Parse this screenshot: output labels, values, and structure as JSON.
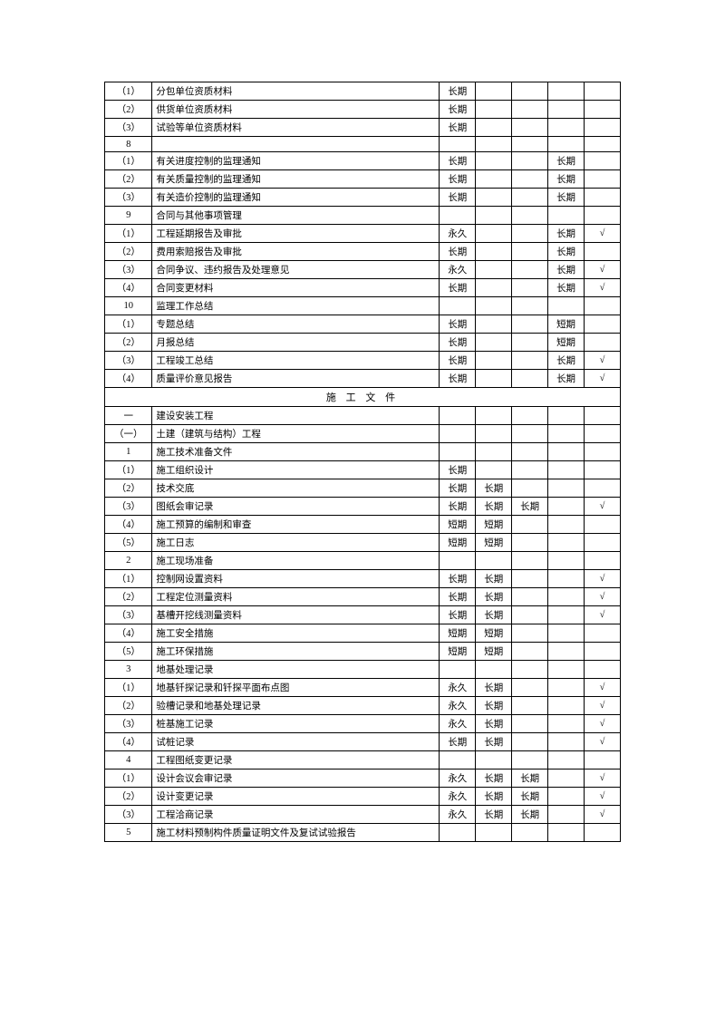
{
  "sectionHeader": "施 工 文 件",
  "rows": [
    {
      "num": "（1）",
      "name": "分包单位资质材料",
      "c1": "长期",
      "c2": "",
      "c3": "",
      "c4": "",
      "c5": ""
    },
    {
      "num": "（2）",
      "name": "供货单位资质材料",
      "c1": "长期",
      "c2": "",
      "c3": "",
      "c4": "",
      "c5": ""
    },
    {
      "num": "（3）",
      "name": "试验等单位资质材料",
      "c1": "长期",
      "c2": "",
      "c3": "",
      "c4": "",
      "c5": ""
    },
    {
      "num": "8",
      "name": "",
      "c1": "",
      "c2": "",
      "c3": "",
      "c4": "",
      "c5": ""
    },
    {
      "num": "（1）",
      "name": "有关进度控制的监理通知",
      "c1": "长期",
      "c2": "",
      "c3": "",
      "c4": "长期",
      "c5": ""
    },
    {
      "num": "（2）",
      "name": "有关质量控制的监理通知",
      "c1": "长期",
      "c2": "",
      "c3": "",
      "c4": "长期",
      "c5": ""
    },
    {
      "num": "（3）",
      "name": "有关造价控制的监理通知",
      "c1": "长期",
      "c2": "",
      "c3": "",
      "c4": "长期",
      "c5": ""
    },
    {
      "num": "9",
      "name": "合同与其他事项管理",
      "c1": "",
      "c2": "",
      "c3": "",
      "c4": "",
      "c5": ""
    },
    {
      "num": "（1）",
      "name": "工程延期报告及审批",
      "c1": "永久",
      "c2": "",
      "c3": "",
      "c4": "长期",
      "c5": "√"
    },
    {
      "num": "（2）",
      "name": "费用索赔报告及审批",
      "c1": "长期",
      "c2": "",
      "c3": "",
      "c4": "长期",
      "c5": ""
    },
    {
      "num": "（3）",
      "name": "合同争议、违约报告及处理意见",
      "c1": "永久",
      "c2": "",
      "c3": "",
      "c4": "长期",
      "c5": "√"
    },
    {
      "num": "（4）",
      "name": "合同变更材料",
      "c1": "长期",
      "c2": "",
      "c3": "",
      "c4": "长期",
      "c5": "√"
    },
    {
      "num": "10",
      "name": "监理工作总结",
      "c1": "",
      "c2": "",
      "c3": "",
      "c4": "",
      "c5": ""
    },
    {
      "num": "（1）",
      "name": "专题总结",
      "c1": "长期",
      "c2": "",
      "c3": "",
      "c4": "短期",
      "c5": ""
    },
    {
      "num": "（2）",
      "name": "月报总结",
      "c1": "长期",
      "c2": "",
      "c3": "",
      "c4": "短期",
      "c5": ""
    },
    {
      "num": "（3）",
      "name": "工程竣工总结",
      "c1": "长期",
      "c2": "",
      "c3": "",
      "c4": "长期",
      "c5": "√"
    },
    {
      "num": "（4）",
      "name": "质量评价意见报告",
      "c1": "长期",
      "c2": "",
      "c3": "",
      "c4": "长期",
      "c5": "√"
    },
    {
      "section": true
    },
    {
      "num": "一",
      "name": "建设安装工程",
      "c1": "",
      "c2": "",
      "c3": "",
      "c4": "",
      "c5": ""
    },
    {
      "num": "（一）",
      "name": "土建（建筑与结构）工程",
      "c1": "",
      "c2": "",
      "c3": "",
      "c4": "",
      "c5": ""
    },
    {
      "num": "1",
      "name": "施工技术准备文件",
      "c1": "",
      "c2": "",
      "c3": "",
      "c4": "",
      "c5": ""
    },
    {
      "num": "（1）",
      "name": "施工组织设计",
      "c1": "长期",
      "c2": "",
      "c3": "",
      "c4": "",
      "c5": ""
    },
    {
      "num": "（2）",
      "name": "技术交底",
      "c1": "长期",
      "c2": "长期",
      "c3": "",
      "c4": "",
      "c5": ""
    },
    {
      "num": "（3）",
      "name": "图纸会审记录",
      "c1": "长期",
      "c2": "长期",
      "c3": "长期",
      "c4": "",
      "c5": "√"
    },
    {
      "num": "（4）",
      "name": "施工预算的编制和审查",
      "c1": "短期",
      "c2": "短期",
      "c3": "",
      "c4": "",
      "c5": ""
    },
    {
      "num": "（5）",
      "name": "施工日志",
      "c1": "短期",
      "c2": "短期",
      "c3": "",
      "c4": "",
      "c5": ""
    },
    {
      "num": "2",
      "name": "施工现场准备",
      "c1": "",
      "c2": "",
      "c3": "",
      "c4": "",
      "c5": ""
    },
    {
      "num": "（1）",
      "name": "控制网设置资料",
      "c1": "长期",
      "c2": "长期",
      "c3": "",
      "c4": "",
      "c5": "√"
    },
    {
      "num": "（2）",
      "name": "工程定位测量资料",
      "c1": "长期",
      "c2": "长期",
      "c3": "",
      "c4": "",
      "c5": "√"
    },
    {
      "num": "（3）",
      "name": "基槽开挖线测量资料",
      "c1": "长期",
      "c2": "长期",
      "c3": "",
      "c4": "",
      "c5": "√"
    },
    {
      "num": "（4）",
      "name": "施工安全措施",
      "c1": "短期",
      "c2": "短期",
      "c3": "",
      "c4": "",
      "c5": ""
    },
    {
      "num": "（5）",
      "name": "施工环保措施",
      "c1": "短期",
      "c2": "短期",
      "c3": "",
      "c4": "",
      "c5": ""
    },
    {
      "num": "3",
      "name": "地基处理记录",
      "c1": "",
      "c2": "",
      "c3": "",
      "c4": "",
      "c5": ""
    },
    {
      "num": "（1）",
      "name": "地基钎探记录和钎探平面布点图",
      "c1": "永久",
      "c2": "长期",
      "c3": "",
      "c4": "",
      "c5": "√"
    },
    {
      "num": "（2）",
      "name": "验槽记录和地基处理记录",
      "c1": "永久",
      "c2": "长期",
      "c3": "",
      "c4": "",
      "c5": "√"
    },
    {
      "num": "（3）",
      "name": "桩基施工记录",
      "c1": "永久",
      "c2": "长期",
      "c3": "",
      "c4": "",
      "c5": "√"
    },
    {
      "num": "（4）",
      "name": "试桩记录",
      "c1": "长期",
      "c2": "长期",
      "c3": "",
      "c4": "",
      "c5": "√"
    },
    {
      "num": "4",
      "name": "工程图纸变更记录",
      "c1": "",
      "c2": "",
      "c3": "",
      "c4": "",
      "c5": ""
    },
    {
      "num": "（1）",
      "name": "设计会议会审记录",
      "c1": "永久",
      "c2": "长期",
      "c3": "长期",
      "c4": "",
      "c5": "√"
    },
    {
      "num": "（2）",
      "name": "设计变更记录",
      "c1": "永久",
      "c2": "长期",
      "c3": "长期",
      "c4": "",
      "c5": "√"
    },
    {
      "num": "（3）",
      "name": "工程洽商记录",
      "c1": "永久",
      "c2": "长期",
      "c3": "长期",
      "c4": "",
      "c5": "√"
    },
    {
      "num": "5",
      "name": "施工材料预制构件质量证明文件及复试试验报告",
      "c1": "",
      "c2": "",
      "c3": "",
      "c4": "",
      "c5": ""
    }
  ]
}
